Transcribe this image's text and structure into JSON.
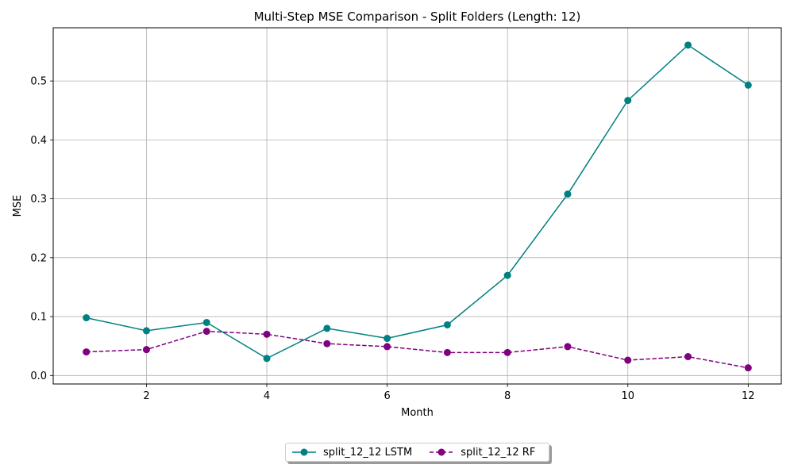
{
  "chart_data": {
    "type": "line",
    "title": "Multi-Step MSE Comparison - Split Folders (Length: 12)",
    "xlabel": "Month",
    "ylabel": "MSE",
    "x": [
      1,
      2,
      3,
      4,
      5,
      6,
      7,
      8,
      9,
      10,
      11,
      12
    ],
    "xlim": [
      0.45,
      12.55
    ],
    "ylim": [
      -0.0144,
      0.5904
    ],
    "xticks": [
      2,
      4,
      6,
      8,
      10,
      12
    ],
    "yticks": [
      0.0,
      0.1,
      0.2,
      0.3,
      0.4,
      0.5
    ],
    "ytick_labels": [
      "0.0",
      "0.1",
      "0.2",
      "0.3",
      "0.4",
      "0.5"
    ],
    "grid": true,
    "legend_position": "bottom-center, below plot",
    "series": [
      {
        "name": "split_12_12 LSTM",
        "color": "#008080",
        "linestyle": "solid",
        "marker": "circle",
        "values": [
          0.098,
          0.076,
          0.09,
          0.029,
          0.08,
          0.063,
          0.086,
          0.17,
          0.308,
          0.467,
          0.561,
          0.493
        ]
      },
      {
        "name": "split_12_12 RF",
        "color": "#800080",
        "linestyle": "dashed",
        "marker": "circle",
        "values": [
          0.04,
          0.044,
          0.075,
          0.07,
          0.054,
          0.049,
          0.039,
          0.039,
          0.049,
          0.026,
          0.032,
          0.013
        ]
      }
    ]
  }
}
